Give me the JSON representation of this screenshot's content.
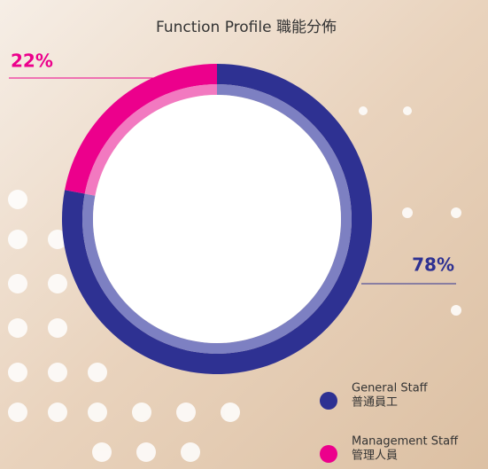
{
  "chart_data": {
    "type": "donut",
    "title": "Function Profile 職能分佈",
    "categories": [
      "General Staff",
      "Management Staff"
    ],
    "categories_zh": [
      "普通員工",
      "管理人員"
    ],
    "values": [
      78,
      22
    ],
    "value_labels": [
      "78%",
      "22%"
    ],
    "colors": [
      "#2e3192",
      "#ec008c"
    ],
    "inner_colors": [
      "#7d80c2",
      "#f279c0"
    ]
  }
}
